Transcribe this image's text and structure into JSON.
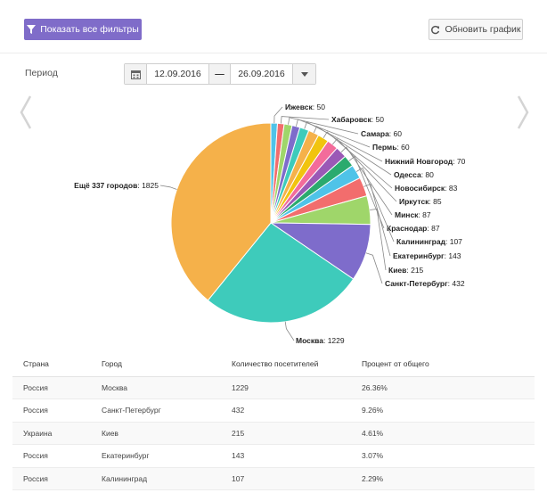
{
  "toolbar": {
    "filters_label": "Показать все фильтры",
    "refresh_label": "Обновить график"
  },
  "period": {
    "label": "Период",
    "from": "12.09.2016",
    "to": "26.09.2016",
    "separator": "—"
  },
  "chart_data": {
    "type": "pie",
    "labels": [
      "Ещё 337 городов",
      "Москва",
      "Санкт-Петербург",
      "Киев",
      "Екатеринбург",
      "Калининград",
      "Краснодар",
      "Минск",
      "Иркутск",
      "Новосибирск",
      "Одесса",
      "Нижний Новгород",
      "Пермь",
      "Самара",
      "Хабаровск",
      "Ижевск"
    ],
    "values": [
      1825,
      1229,
      432,
      215,
      143,
      107,
      87,
      87,
      85,
      83,
      80,
      70,
      60,
      60,
      50,
      50
    ],
    "colors": [
      "#f5b14a",
      "#3ecbbb",
      "#7e6ccb",
      "#9fd66a",
      "#f26d6d",
      "#4fc3e8",
      "#2baa6e",
      "#9b59b6",
      "#f36c9b",
      "#f1c40f",
      "#f5b14a",
      "#3ecbbb",
      "#7e6ccb",
      "#9fd66a",
      "#f26d6d",
      "#4fc3e8"
    ]
  },
  "table": {
    "headers": [
      "Страна",
      "Город",
      "Количество посетителей",
      "Процент от общего"
    ],
    "rows": [
      [
        "Россия",
        "Москва",
        "1229",
        "26.36%"
      ],
      [
        "Россия",
        "Санкт-Петербург",
        "432",
        "9.26%"
      ],
      [
        "Украина",
        "Киев",
        "215",
        "4.61%"
      ],
      [
        "Россия",
        "Екатеринбург",
        "143",
        "3.07%"
      ],
      [
        "Россия",
        "Калининград",
        "107",
        "2.29%"
      ]
    ]
  }
}
